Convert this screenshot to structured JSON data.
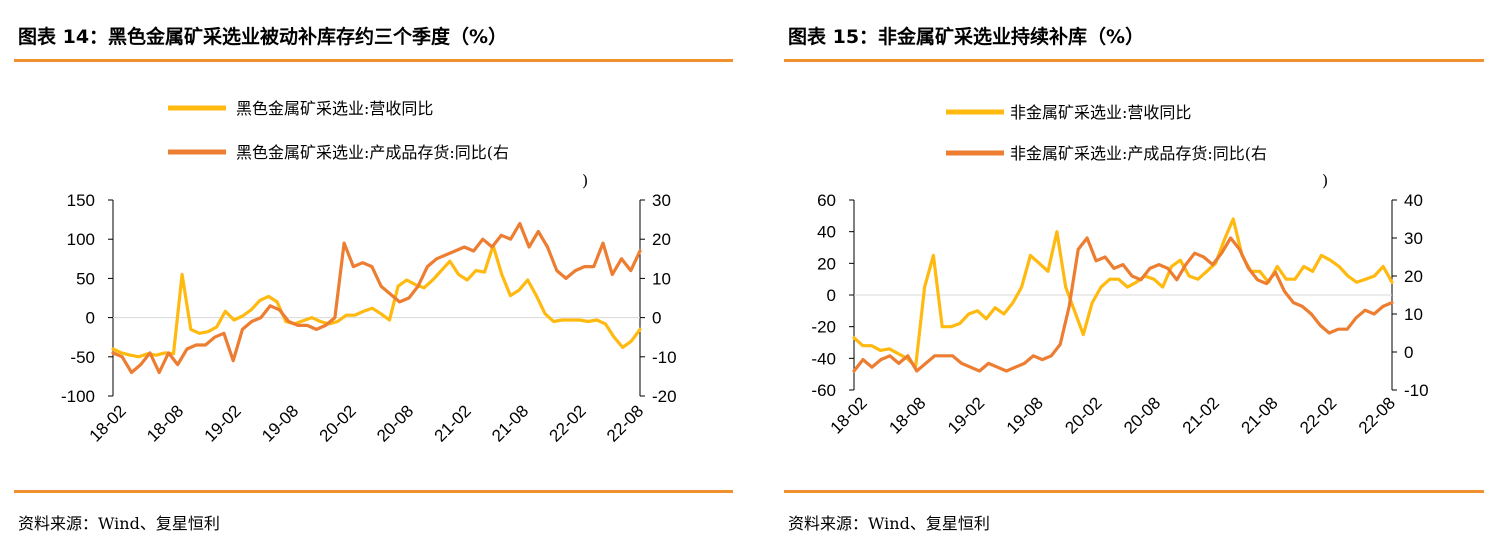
{
  "left": {
    "title": "图表 14：黑色金属矿采选业被动补库存约三个季度（%）",
    "source": "资料来源：Wind、复星恒利"
  },
  "right": {
    "title": "图表 15：非金属矿采选业持续补库（%）",
    "source": "资料来源：Wind、复星恒利"
  },
  "colors": {
    "rule": "#f0912d",
    "series1": "#ffb90f",
    "series2": "#ed7d31",
    "axis": "#000000"
  },
  "chart_data": [
    {
      "type": "line",
      "x_ticks": [
        "18-02",
        "18-08",
        "19-02",
        "19-08",
        "20-02",
        "20-08",
        "21-02",
        "21-08",
        "22-02",
        "22-08"
      ],
      "x_start": "2018-02",
      "x_end": "2022-09",
      "left_ticks": [
        "150",
        "100",
        "50",
        "0",
        "-50",
        "-100"
      ],
      "right_ticks": [
        "30",
        "20",
        "10",
        "0",
        "-10",
        "-20"
      ],
      "ylim_left": [
        -100,
        150
      ],
      "ylim_right": [
        -20,
        30
      ],
      "legend_1": "黑色金属矿采选业:营收同比",
      "legend_2a": "黑色金属矿采选业:产成品存货:同比(右",
      "legend_2b": ")",
      "series": [
        {
          "name": "黑色金属矿采选业:营收同比",
          "axis": "left",
          "values": [
            -40,
            -45,
            -48,
            -50,
            -46,
            -48,
            -45,
            -46,
            55,
            -15,
            -20,
            -18,
            -12,
            8,
            -3,
            2,
            10,
            22,
            27,
            20,
            -5,
            -8,
            -4,
            0,
            -5,
            -8,
            -5,
            3,
            3,
            8,
            12,
            5,
            -3,
            40,
            48,
            42,
            38,
            48,
            60,
            72,
            55,
            48,
            60,
            58,
            92,
            55,
            28,
            35,
            48,
            28,
            5,
            -5,
            -3,
            -3,
            -3,
            -5,
            -3,
            -8,
            -25,
            -38,
            -30,
            -15
          ]
        },
        {
          "name": "黑色金属矿采选业:产成品存货:同比(右",
          "axis": "right",
          "values": [
            -9,
            -10,
            -14,
            -12,
            -9,
            -14,
            -9,
            -12,
            -8,
            -7,
            -7,
            -5,
            -4,
            -11,
            -3,
            -1,
            0,
            3,
            2,
            -1,
            -2,
            -2,
            -3,
            -2,
            0,
            19,
            13,
            14,
            13,
            8,
            6,
            4,
            5,
            8,
            13,
            15,
            16,
            17,
            18,
            17,
            20,
            18,
            21,
            20,
            24,
            18,
            22,
            18,
            12,
            10,
            12,
            13,
            13,
            19,
            11,
            15,
            12,
            17
          ]
        }
      ]
    },
    {
      "type": "line",
      "x_ticks": [
        "18-02",
        "18-08",
        "19-02",
        "19-08",
        "20-02",
        "20-08",
        "21-02",
        "21-08",
        "22-02",
        "22-08"
      ],
      "x_start": "2018-02",
      "x_end": "2022-09",
      "left_ticks": [
        "60",
        "40",
        "20",
        "0",
        "-20",
        "-40",
        "-60"
      ],
      "right_ticks": [
        "40",
        "30",
        "20",
        "10",
        "0",
        "-10"
      ],
      "ylim_left": [
        -60,
        60
      ],
      "ylim_right": [
        -10,
        40
      ],
      "legend_1": "非金属矿采选业:营收同比",
      "legend_2a": "非金属矿采选业:产成品存货:同比(右",
      "legend_2b": ")",
      "series": [
        {
          "name": "非金属矿采选业:营收同比",
          "axis": "left",
          "values": [
            -27,
            -32,
            -32,
            -35,
            -34,
            -37,
            -40,
            -45,
            5,
            25,
            -20,
            -20,
            -18,
            -12,
            -10,
            -15,
            -8,
            -12,
            -5,
            5,
            25,
            20,
            15,
            40,
            5,
            -10,
            -25,
            -5,
            5,
            10,
            10,
            5,
            8,
            12,
            10,
            5,
            18,
            22,
            12,
            10,
            15,
            20,
            35,
            48,
            25,
            15,
            15,
            8,
            18,
            10,
            10,
            18,
            15,
            25,
            22,
            18,
            12,
            8,
            10,
            12,
            18,
            8
          ]
        },
        {
          "name": "非金属矿采选业:产成品存货:同比(右",
          "axis": "right",
          "values": [
            -5,
            -2,
            -4,
            -2,
            -1,
            -3,
            -1,
            -5,
            -3,
            -1,
            -1,
            -1,
            -3,
            -4,
            -5,
            -3,
            -4,
            -5,
            -4,
            -3,
            -1,
            -2,
            -1,
            2,
            12,
            27,
            30,
            24,
            25,
            22,
            23,
            20,
            19,
            22,
            23,
            22,
            19,
            23,
            26,
            25,
            23,
            26,
            30,
            27,
            22,
            19,
            18,
            21,
            16,
            13,
            12,
            10,
            7,
            5,
            6,
            6,
            9,
            11,
            10,
            12,
            13
          ]
        }
      ]
    }
  ]
}
